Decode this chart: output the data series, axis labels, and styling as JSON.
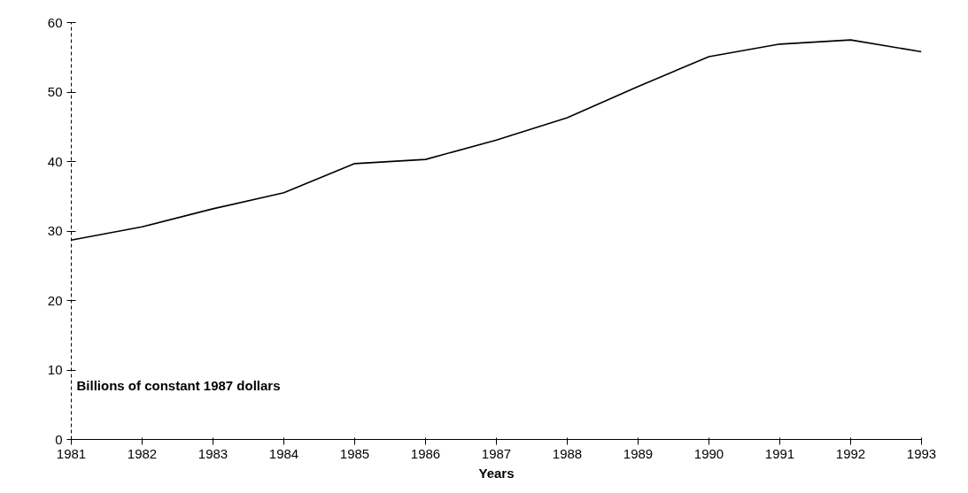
{
  "chart_data": {
    "type": "line",
    "xlabel": "Years",
    "ylabel": "Billions of constant 1987 dollars",
    "x": [
      1981,
      1982,
      1983,
      1984,
      1985,
      1986,
      1987,
      1988,
      1989,
      1990,
      1991,
      1992,
      1993
    ],
    "series": [
      {
        "color": "#000000",
        "values": [
          28.7,
          30.6,
          33.2,
          35.5,
          39.7,
          40.3,
          43.1,
          46.3,
          50.8,
          55.1,
          56.9,
          57.5,
          55.8
        ]
      }
    ],
    "xlim": [
      1981,
      1993
    ],
    "xticks": [
      1981,
      1982,
      1983,
      1984,
      1985,
      1986,
      1987,
      1988,
      1989,
      1990,
      1991,
      1992,
      1993
    ],
    "ylim": [
      0,
      60
    ],
    "yticks": [
      0,
      10,
      20,
      30,
      40,
      50,
      60
    ],
    "grid": false,
    "marker": "none",
    "line_style": "solid"
  }
}
